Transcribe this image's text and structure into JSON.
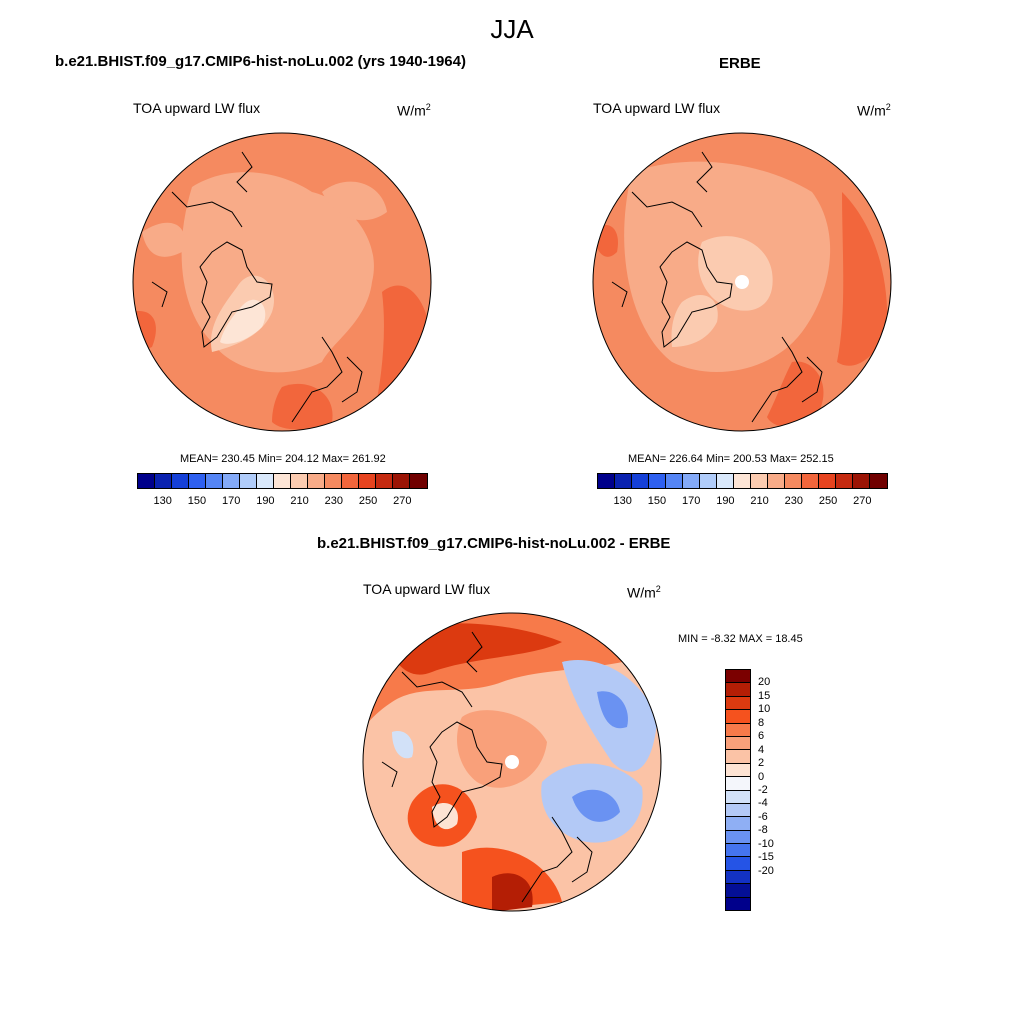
{
  "title": "JJA",
  "panels": [
    {
      "title": "b.e21.BHIST.f09_g17.CMIP6-hist-noLu.002 (yrs 1940-1964)",
      "variable": "TOA upward LW flux",
      "unit": "W/m",
      "unit_sup": "2",
      "stats": "MEAN= 230.45  Min= 204.12  Max= 261.92",
      "colorbar": {
        "colors": [
          "#00008b",
          "#0a22b0",
          "#1540d8",
          "#2e60f0",
          "#5585f5",
          "#84aaf8",
          "#b0ccfa",
          "#d9e8fb",
          "#fde5d6",
          "#fbcbb0",
          "#f8ab88",
          "#f58a60",
          "#f2663c",
          "#e7441f",
          "#c52a10",
          "#9b1405",
          "#700000"
        ],
        "tick_labels": [
          "130",
          "150",
          "170",
          "190",
          "210",
          "230",
          "250",
          "270"
        ]
      }
    },
    {
      "title": "ERBE",
      "variable": "TOA upward LW flux",
      "unit": "W/m",
      "unit_sup": "2",
      "stats": "MEAN= 226.64  Min= 200.53  Max= 252.15",
      "colorbar": {
        "colors": [
          "#00008b",
          "#0a22b0",
          "#1540d8",
          "#2e60f0",
          "#5585f5",
          "#84aaf8",
          "#b0ccfa",
          "#d9e8fb",
          "#fde5d6",
          "#fbcbb0",
          "#f8ab88",
          "#f58a60",
          "#f2663c",
          "#e7441f",
          "#c52a10",
          "#9b1405",
          "#700000"
        ],
        "tick_labels": [
          "130",
          "150",
          "170",
          "190",
          "210",
          "230",
          "250",
          "270"
        ]
      }
    },
    {
      "title": "b.e21.BHIST.f09_g17.CMIP6-hist-noLu.002 - ERBE",
      "variable": "TOA upward LW flux",
      "unit": "W/m",
      "unit_sup": "2",
      "stats": "MIN =  -8.32 MAX =  18.45",
      "colorbar": {
        "colors": [
          "#7b0000",
          "#b41e05",
          "#dc3a10",
          "#f5521e",
          "#f77a4a",
          "#f9a07a",
          "#fbc3a6",
          "#fde3d3",
          "#f4f6fb",
          "#d2e1f8",
          "#b3c9f6",
          "#8faff4",
          "#6a92f2",
          "#4574ef",
          "#2554e6",
          "#1332c4",
          "#040f96",
          "#00008b"
        ],
        "tick_labels": [
          "20",
          "15",
          "10",
          "8",
          "6",
          "4",
          "2",
          "0",
          "-2",
          "-4",
          "-6",
          "-8",
          "-10",
          "-15",
          "-20"
        ]
      }
    }
  ]
}
